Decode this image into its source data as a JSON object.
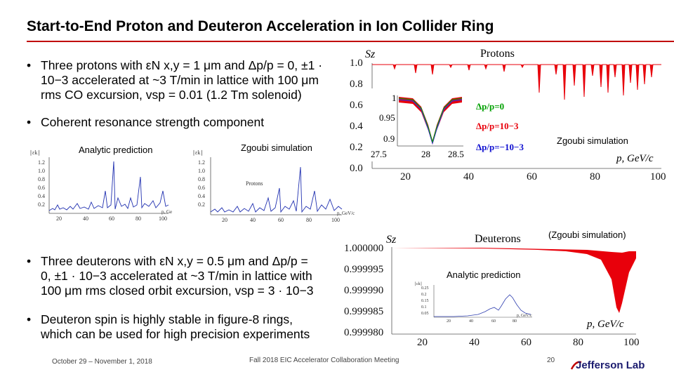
{
  "slide": {
    "title": "Start-to-End Proton and Deuteron Acceleration in Ion Collider Ring",
    "bullets_top": [
      "Three protons with εN x,y = 1 μm and Δp/p = 0, ±1 ·",
      "10−3 accelerated at ~3 T/min in lattice with 100 μm",
      "rms CO excursion, vsp = 0.01 (1.2 Tm solenoid)",
      "Coherent resonance strength component"
    ],
    "bullets_bottom": [
      "Three deuterons with εN x,y = 0.5 μm and Δp/p =",
      "0, ±1 · 10−3 accelerated at ~3 T/min in lattice with",
      "100 μm rms closed orbit excursion, vsp = 3 · 10−3",
      "Deuteron spin is highly stable in figure-8 rings,",
      "which can be used for high precision experiments"
    ],
    "captions": {
      "analytic_left": "Analytic prediction",
      "zgoubi_mid": "Zgoubi simulation",
      "zgoubi_right": "Zgoubi simulation",
      "zgoubi_paren": "(Zgoubi simulation)",
      "analytic_deut": "Analytic prediction"
    },
    "footer": {
      "date": "October 29 – November 1, 2018",
      "meeting": "Fall 2018 EIC Accelerator Collaboration Meeting",
      "page": "20",
      "logo": "Jefferson Lab"
    },
    "colors": {
      "accent": "#c00000",
      "red": "#e8000b",
      "blue": "#1010d0",
      "green": "#00a000"
    }
  },
  "chart_data": [
    {
      "type": "line",
      "title": "Protons",
      "ylabel": "Sz",
      "xlabel": "p, GeV/c",
      "x_ticks": [
        "20",
        "40",
        "60",
        "80",
        "100"
      ],
      "y_ticks": [
        "1.0",
        "0.8",
        "0.6",
        "0.4",
        "0.2",
        "0.0"
      ],
      "xlim": [
        15,
        100
      ],
      "ylim": [
        0,
        1.0
      ],
      "series": [
        {
          "values": "Sz ≈ 1.0 with downward spikes near resonances"
        }
      ],
      "inset": {
        "x_ticks": [
          "27.5",
          "28",
          "28.5"
        ],
        "y_ticks": [
          "1",
          "0.95",
          "0.9"
        ],
        "legend": [
          "Δp/p=0",
          "Δp/p=10−3",
          "Δp/p=−10−3"
        ]
      }
    },
    {
      "type": "area",
      "title": "Deuterons",
      "ylabel": "Sz",
      "xlabel": "p, GeV/c",
      "x_ticks": [
        "20",
        "40",
        "60",
        "80",
        "100"
      ],
      "y_ticks": [
        "1.000000",
        "0.999995",
        "0.999990",
        "0.999985",
        "0.999980"
      ],
      "xlim": [
        5,
        100
      ],
      "ylim": [
        0.99998,
        1.0
      ],
      "inset": {
        "y_ticks": [
          "0.25",
          "0.2",
          "0.15",
          "0.1",
          "0.05"
        ],
        "x_ticks": [
          "20",
          "40",
          "60",
          "80"
        ],
        "xlabel": "p, GeV/c"
      }
    },
    {
      "type": "line",
      "title": "",
      "y_ticks": [
        "1.2",
        "1.0",
        "0.8",
        "0.6",
        "0.4",
        "0.2"
      ],
      "x_ticks": [
        "20",
        "40",
        "60",
        "80",
        "100"
      ],
      "xlabel": "p, GeV/c"
    },
    {
      "type": "line",
      "title": "Protons",
      "y_ticks": [
        "1.2",
        "1.0",
        "0.8",
        "0.6",
        "0.4",
        "0.2"
      ],
      "x_ticks": [
        "20",
        "40",
        "60",
        "80",
        "100"
      ],
      "xlabel": "p, GeV/c"
    }
  ]
}
